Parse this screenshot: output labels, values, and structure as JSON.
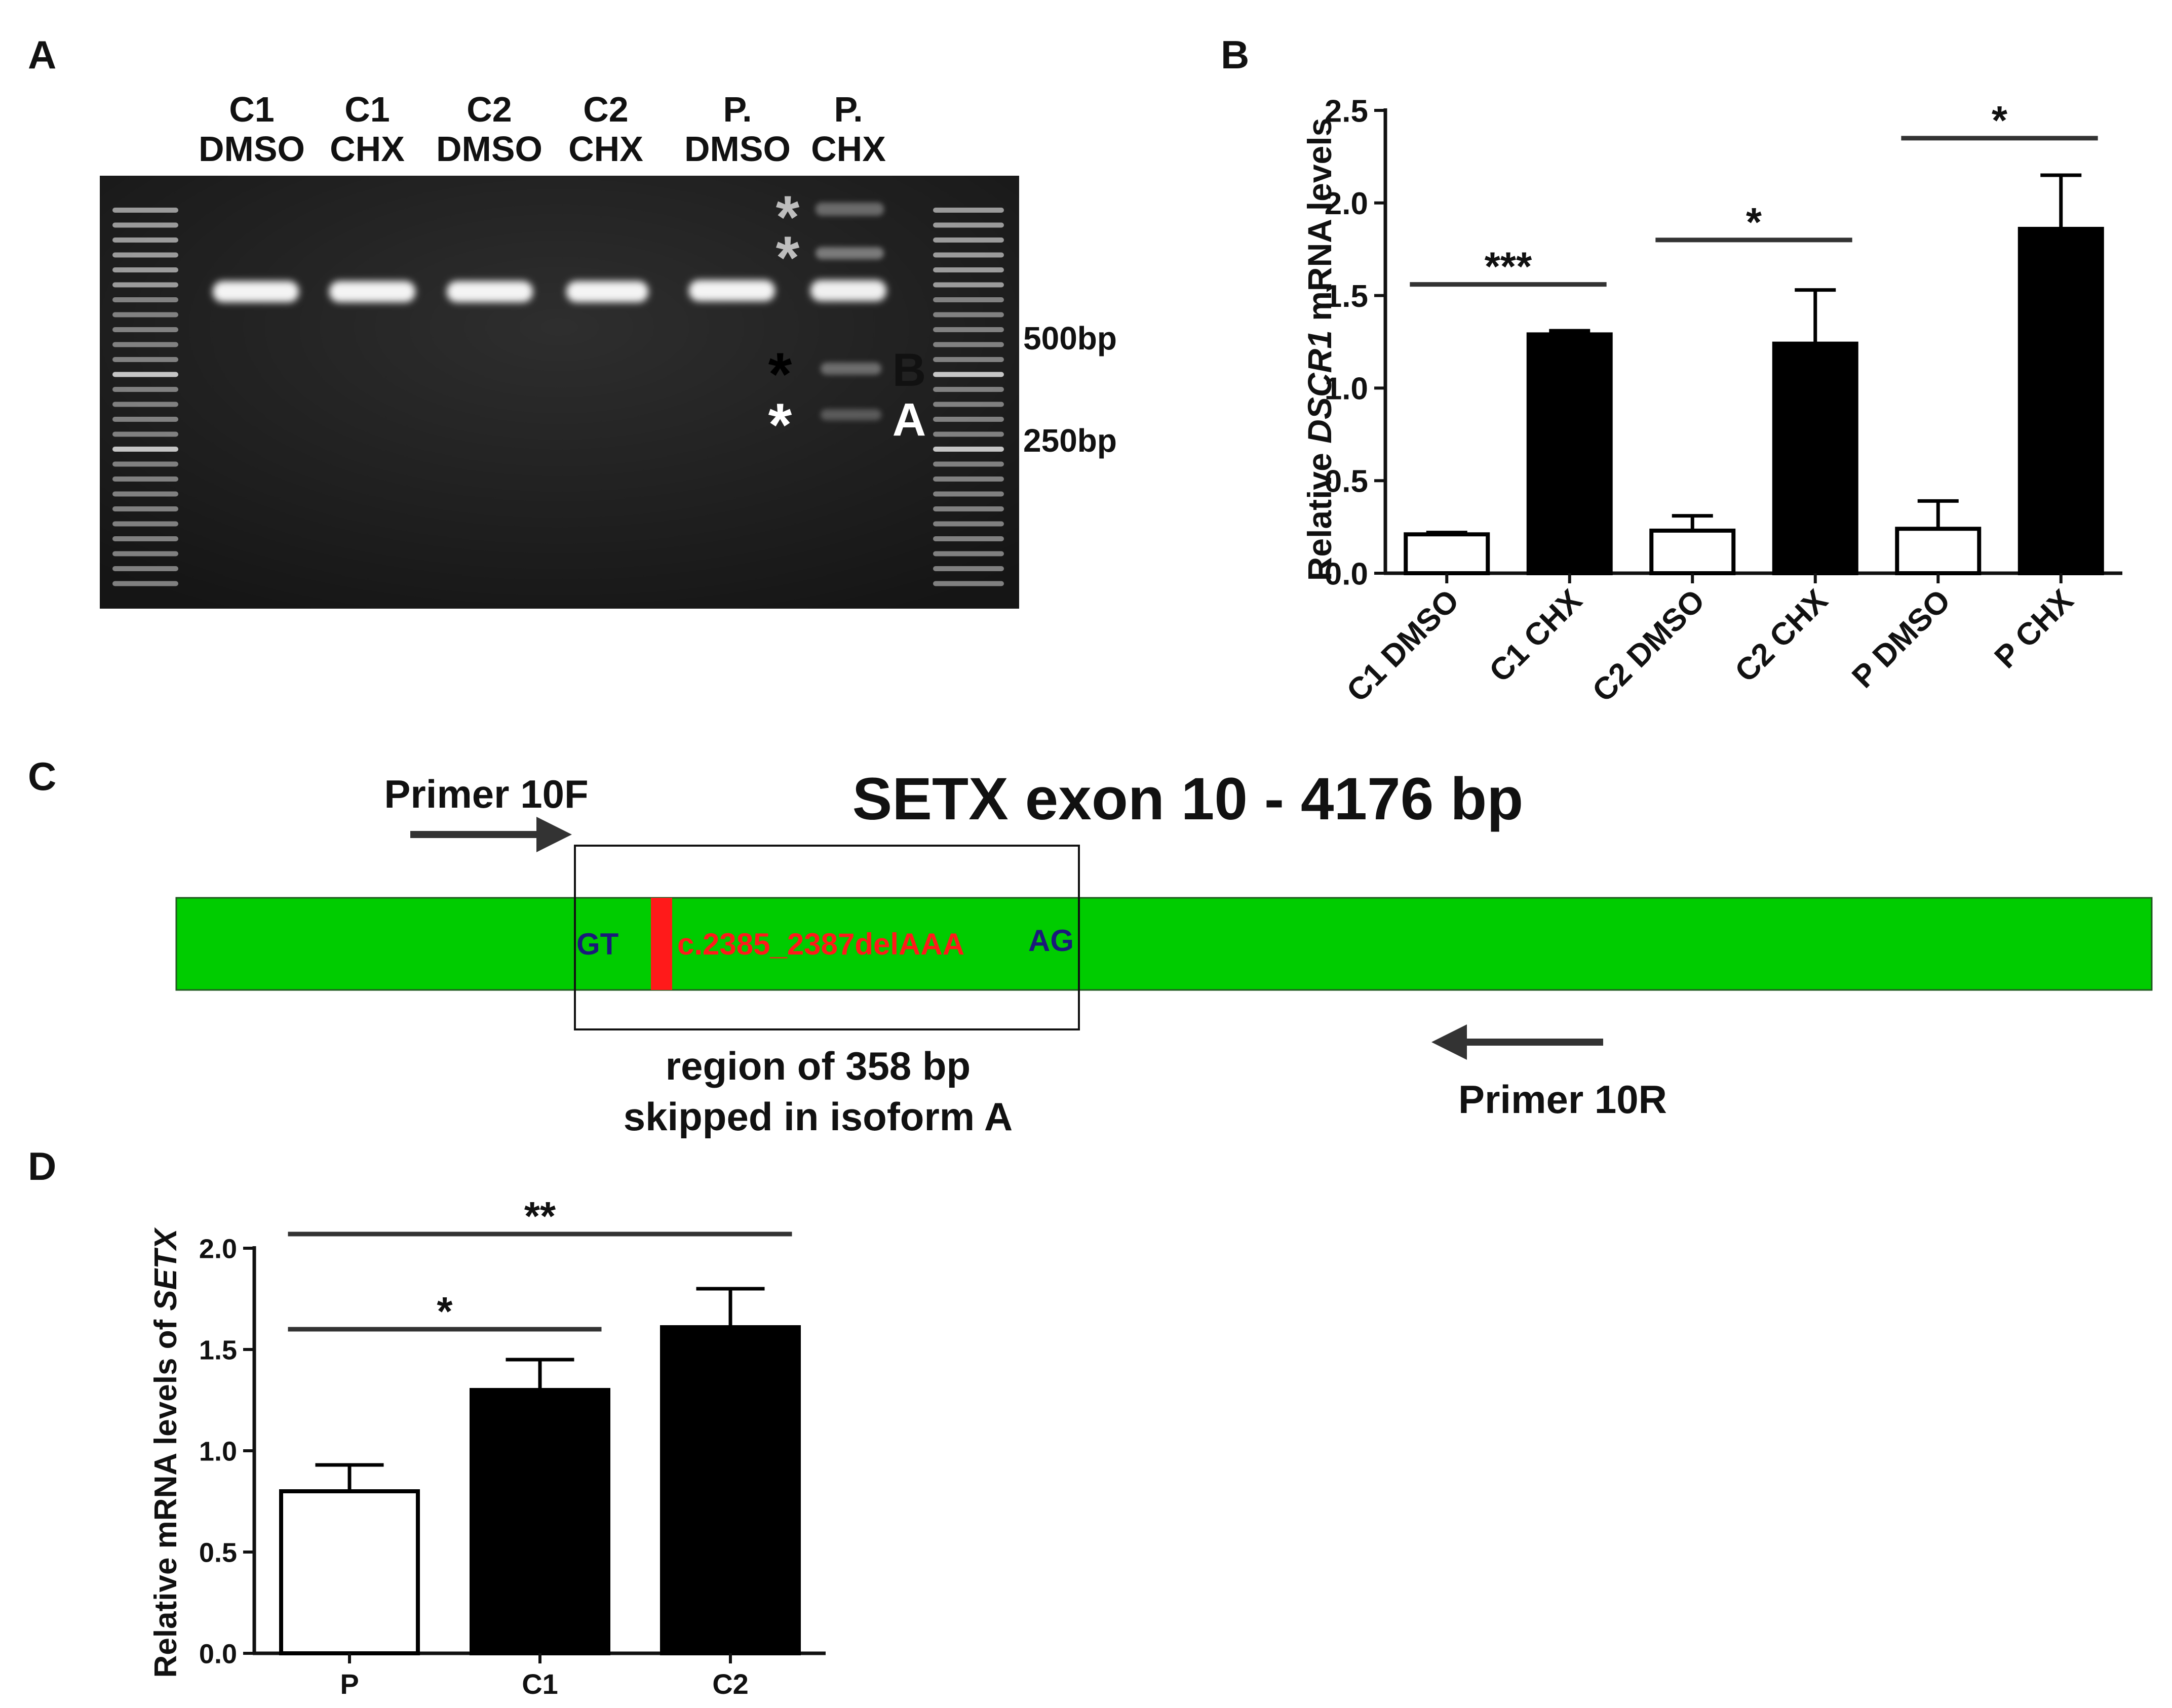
{
  "panels": {
    "a": "A",
    "b": "B",
    "c": "C",
    "d": "D"
  },
  "gel": {
    "lanes": [
      {
        "line1": "C1",
        "line2": "DMSO"
      },
      {
        "line1": "C1",
        "line2": "CHX"
      },
      {
        "line1": "C2",
        "line2": "DMSO"
      },
      {
        "line1": "C2",
        "line2": "CHX"
      },
      {
        "line1": "P.",
        "line2": "DMSO"
      },
      {
        "line1": "P.",
        "line2": "CHX"
      }
    ],
    "markers": {
      "bp500": "500bp",
      "bp250": "250bp"
    },
    "asterisk": "*",
    "band_b": "B",
    "band_a": "A"
  },
  "diagram": {
    "title": "SETX exon 10 - 4176 bp",
    "primer_f": "Primer 10F",
    "primer_r": "Primer 10R",
    "gt": "GT",
    "ag": "AG",
    "mutation": "c.2385_2387delAAA",
    "region_line1": "region of 358 bp",
    "region_line2": "skipped in isoform A",
    "exon_color": "#00cc00",
    "mutation_color": "#ff1a1a",
    "site_color": "#1a1a7a"
  },
  "chart_data": [
    {
      "type": "bar",
      "panel": "B",
      "title": "",
      "xlabel": "",
      "ylabel_prefix": "Relative ",
      "ylabel_italic": "DSCR1",
      "ylabel_suffix": " mRNA levels",
      "categories": [
        "C1 DMSO",
        "C1 CHX",
        "C2 DMSO",
        "C2 CHX",
        "P DMSO",
        "P CHX"
      ],
      "values": [
        0.21,
        1.29,
        0.23,
        1.24,
        0.24,
        1.86
      ],
      "errors": [
        0.01,
        0.02,
        0.08,
        0.29,
        0.15,
        0.29
      ],
      "fills": [
        "white",
        "black",
        "white",
        "black",
        "white",
        "black"
      ],
      "ylim": [
        0,
        2.5
      ],
      "yticks": [
        "0.0",
        "0.5",
        "1.0",
        "1.5",
        "2.0",
        "2.5"
      ],
      "significance": [
        {
          "label": "***",
          "from": 0,
          "to": 1,
          "y": 1.56
        },
        {
          "label": "*",
          "from": 2,
          "to": 3,
          "y": 1.8
        },
        {
          "label": "*",
          "from": 4,
          "to": 5,
          "y": 2.35
        }
      ]
    },
    {
      "type": "bar",
      "panel": "D",
      "title": "",
      "xlabel": "",
      "ylabel_prefix": "Relative mRNA levels of ",
      "ylabel_italic": "SETX",
      "ylabel_suffix": "",
      "categories": [
        "P",
        "C1",
        "C2"
      ],
      "values": [
        0.8,
        1.3,
        1.61
      ],
      "errors": [
        0.13,
        0.15,
        0.19
      ],
      "fills": [
        "white",
        "black",
        "black"
      ],
      "ylim": [
        0,
        2.0
      ],
      "yticks": [
        "0.0",
        "0.5",
        "1.0",
        "1.5",
        "2.0"
      ],
      "significance": [
        {
          "label": "*",
          "from": 0,
          "to": 1,
          "y": 1.6
        },
        {
          "label": "**",
          "from": 0,
          "to": 2,
          "y": 2.07
        }
      ]
    }
  ]
}
